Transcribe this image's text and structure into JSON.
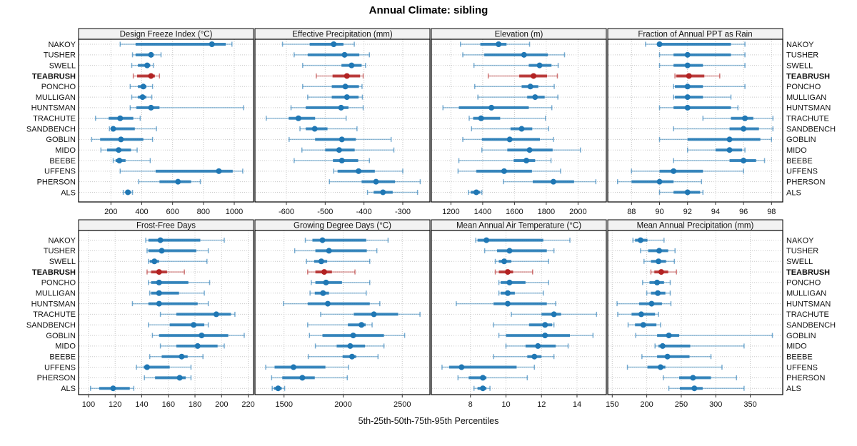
{
  "title": "Annual Climate: sibling",
  "footer": "5th-25th-50th-75th-95th Percentiles",
  "percentiles": [
    5,
    25,
    50,
    75,
    95
  ],
  "sites": [
    "NAKOY",
    "TUSHER",
    "SWELL",
    "TEABRUSH",
    "PONCHO",
    "MULLIGAN",
    "HUNTSMAN",
    "TRACHUTE",
    "SANDBENCH",
    "GOBLIN",
    "MIDO",
    "BEEBE",
    "UFFENS",
    "PHERSON",
    "ALS"
  ],
  "highlight_site": "TEABRUSH",
  "colors": {
    "series": "#1F77B4",
    "highlight": "#B22222",
    "grid": "#C9C9C9",
    "panel_border": "#000000",
    "header_bg": "#F2F2F2",
    "text": "#111111"
  },
  "chart_data": [
    {
      "type": "interval",
      "title": "Design Freeze Index (°C)",
      "xlim": [
        -10,
        1125
      ],
      "ticks": [
        200,
        400,
        600,
        800,
        1000
      ],
      "values": [
        [
          260,
          360,
          855,
          945,
          985
        ],
        [
          340,
          360,
          460,
          475,
          525
        ],
        [
          335,
          375,
          435,
          455,
          475
        ],
        [
          345,
          370,
          460,
          485,
          515
        ],
        [
          325,
          375,
          410,
          430,
          470
        ],
        [
          335,
          375,
          405,
          430,
          465
        ],
        [
          325,
          365,
          460,
          515,
          1060
        ],
        [
          100,
          185,
          260,
          345,
          390
        ],
        [
          190,
          200,
          215,
          355,
          495
        ],
        [
          75,
          130,
          265,
          410,
          470
        ],
        [
          135,
          175,
          250,
          330,
          370
        ],
        [
          215,
          230,
          255,
          295,
          455
        ],
        [
          260,
          490,
          900,
          990,
          1055
        ],
        [
          380,
          515,
          635,
          720,
          780
        ],
        [
          280,
          295,
          310,
          330,
          340
        ]
      ]
    },
    {
      "type": "interval",
      "title": "Effective Precipitation (mm)",
      "xlim": [
        -681,
        -230
      ],
      "ticks": [
        -600,
        -500,
        -400,
        -300
      ],
      "values": [
        [
          -610,
          -540,
          -478,
          -453,
          -425
        ],
        [
          -580,
          -545,
          -450,
          -412,
          -386
        ],
        [
          -558,
          -458,
          -432,
          -406,
          -396
        ],
        [
          -523,
          -481,
          -444,
          -410,
          -402
        ],
        [
          -558,
          -483,
          -448,
          -413,
          -405
        ],
        [
          -545,
          -483,
          -444,
          -414,
          -404
        ],
        [
          -588,
          -550,
          -459,
          -440,
          -402
        ],
        [
          -652,
          -594,
          -569,
          -526,
          -446
        ],
        [
          -565,
          -550,
          -527,
          -494,
          -418
        ],
        [
          -593,
          -526,
          -457,
          -421,
          -330
        ],
        [
          -560,
          -500,
          -464,
          -424,
          -323
        ],
        [
          -580,
          -480,
          -457,
          -415,
          -386
        ],
        [
          -478,
          -468,
          -414,
          -372,
          -300
        ],
        [
          -489,
          -406,
          -369,
          -320,
          -255
        ],
        [
          -391,
          -375,
          -351,
          -326,
          -262
        ]
      ]
    },
    {
      "type": "interval",
      "title": "Elevation (m)",
      "xlim": [
        1077,
        2178
      ],
      "ticks": [
        1200,
        1400,
        1600,
        1800,
        2000
      ],
      "values": [
        [
          1260,
          1385,
          1500,
          1550,
          1695
        ],
        [
          1275,
          1410,
          1660,
          1810,
          1915
        ],
        [
          1345,
          1690,
          1758,
          1833,
          1875
        ],
        [
          1435,
          1630,
          1720,
          1805,
          1870
        ],
        [
          1350,
          1645,
          1700,
          1750,
          1850
        ],
        [
          1370,
          1680,
          1730,
          1790,
          1873
        ],
        [
          1150,
          1250,
          1455,
          1690,
          1835
        ],
        [
          1315,
          1340,
          1390,
          1510,
          1795
        ],
        [
          1330,
          1575,
          1645,
          1712,
          1815
        ],
        [
          1275,
          1395,
          1570,
          1760,
          1845
        ],
        [
          1395,
          1555,
          1695,
          1840,
          2015
        ],
        [
          1250,
          1595,
          1675,
          1730,
          1830
        ],
        [
          1245,
          1360,
          1535,
          1710,
          1890
        ],
        [
          1530,
          1715,
          1845,
          1975,
          2112
        ],
        [
          1310,
          1325,
          1360,
          1385,
          1395
        ]
      ]
    },
    {
      "type": "interval",
      "title": "Fraction of Annual PPT as Rain",
      "xlim": [
        86.3,
        98.8
      ],
      "ticks": [
        88,
        90,
        92,
        94,
        96,
        98
      ],
      "values": [
        [
          89.0,
          89.9,
          90.0,
          95.1,
          96.1
        ],
        [
          90.0,
          91.0,
          92.0,
          95.1,
          96.1
        ],
        [
          90.0,
          91.0,
          92.0,
          93.1,
          96.1
        ],
        [
          91.1,
          91.2,
          92.1,
          93.2,
          94.3
        ],
        [
          91.0,
          91.1,
          92.0,
          93.1,
          96.1
        ],
        [
          91.0,
          91.1,
          92.0,
          93.1,
          95.1
        ],
        [
          90.0,
          91.0,
          92.0,
          95.1,
          95.6
        ],
        [
          93.1,
          95.1,
          96.1,
          96.7,
          98.1
        ],
        [
          91.0,
          95.0,
          96.0,
          97.1,
          98.1
        ],
        [
          90.0,
          92.0,
          95.0,
          97.2,
          98.0
        ],
        [
          92.0,
          94.0,
          95.0,
          95.9,
          96.1
        ],
        [
          91.0,
          95.0,
          96.0,
          96.9,
          97.5
        ],
        [
          88.0,
          90.0,
          91.0,
          93.1,
          96.0
        ],
        [
          87.0,
          88.0,
          90.0,
          91.0,
          93.0
        ],
        [
          90.0,
          91.0,
          92.0,
          92.9,
          93.1
        ]
      ]
    },
    {
      "type": "interval",
      "title": "Frost-Free Days",
      "xlim": [
        92.5,
        224
      ],
      "ticks": [
        100,
        120,
        140,
        160,
        180,
        200,
        220
      ],
      "values": [
        [
          143,
          145,
          154,
          184,
          202
        ],
        [
          144,
          145,
          155,
          181,
          190
        ],
        [
          145,
          146,
          149.5,
          153,
          189
        ],
        [
          144,
          147,
          153,
          159,
          172
        ],
        [
          145,
          147,
          153,
          175,
          191
        ],
        [
          146,
          147,
          153,
          168,
          187
        ],
        [
          133,
          145,
          153,
          182,
          190
        ],
        [
          154,
          166,
          196,
          207,
          210
        ],
        [
          145,
          161,
          179,
          187,
          190
        ],
        [
          148,
          153,
          185,
          205,
          217
        ],
        [
          154,
          166,
          182,
          197,
          202
        ],
        [
          146,
          155,
          170,
          174.5,
          186
        ],
        [
          136,
          141.5,
          144,
          161,
          177
        ],
        [
          142,
          150,
          168.5,
          173,
          177
        ],
        [
          101.5,
          108,
          118.5,
          131,
          134
        ]
      ]
    },
    {
      "type": "interval",
      "title": "Growing Degree Days (°C)",
      "xlim": [
        1254,
        2734
      ],
      "ticks": [
        1500,
        2000,
        2500
      ],
      "values": [
        [
          1680,
          1740,
          1825,
          2195,
          2380
        ],
        [
          1590,
          1765,
          1880,
          2200,
          2285
        ],
        [
          1690,
          1755,
          1815,
          1865,
          2225
        ],
        [
          1700,
          1765,
          1840,
          1905,
          2100
        ],
        [
          1730,
          1765,
          1855,
          1990,
          2225
        ],
        [
          1720,
          1760,
          1830,
          1880,
          2195
        ],
        [
          1495,
          1700,
          1870,
          2225,
          2310
        ],
        [
          1810,
          2090,
          2260,
          2465,
          2650
        ],
        [
          1700,
          2040,
          2155,
          2190,
          2245
        ],
        [
          1715,
          1825,
          2085,
          2345,
          2520
        ],
        [
          1765,
          1945,
          2060,
          2185,
          2345
        ],
        [
          1705,
          1995,
          2075,
          2110,
          2295
        ],
        [
          1345,
          1420,
          1580,
          1850,
          2045
        ],
        [
          1395,
          1485,
          1655,
          1760,
          2035
        ],
        [
          1400,
          1415,
          1450,
          1480,
          1505
        ]
      ]
    },
    {
      "type": "interval",
      "title": "Mean Annual Air Temperature (°C)",
      "xlim": [
        5.8,
        15.65
      ],
      "ticks": [
        8,
        10,
        12,
        14
      ],
      "values": [
        [
          8.3,
          8.4,
          8.9,
          12.1,
          13.6
        ],
        [
          8.8,
          9.5,
          10.2,
          12.3,
          12.7
        ],
        [
          9.4,
          9.6,
          9.9,
          10.3,
          12.4
        ],
        [
          9.4,
          9.6,
          10.1,
          10.4,
          11.5
        ],
        [
          9.6,
          9.7,
          10.2,
          11.1,
          12.4
        ],
        [
          9.6,
          9.7,
          10.1,
          10.5,
          12.1
        ],
        [
          7.2,
          9.3,
          10.1,
          12.3,
          12.8
        ],
        [
          10.3,
          12.0,
          12.7,
          13.1,
          15.1
        ],
        [
          9.3,
          11.3,
          12.2,
          12.6,
          12.7
        ],
        [
          9.6,
          10.0,
          12.2,
          13.6,
          14.9
        ],
        [
          10.0,
          11.1,
          11.8,
          12.8,
          13.5
        ],
        [
          9.3,
          11.2,
          11.6,
          12.0,
          12.7
        ],
        [
          6.4,
          6.8,
          7.5,
          10.6,
          11.6
        ],
        [
          7.3,
          7.9,
          8.7,
          8.9,
          11.2
        ],
        [
          8.2,
          8.4,
          8.7,
          8.9,
          9.1
        ]
      ]
    },
    {
      "type": "interval",
      "title": "Mean Annual Precipitation (mm)",
      "xlim": [
        143.5,
        397
      ],
      "ticks": [
        150,
        200,
        250,
        300,
        350
      ],
      "values": [
        [
          180,
          183,
          191,
          201,
          225
        ],
        [
          191,
          202,
          218,
          231,
          241
        ],
        [
          196,
          206,
          217,
          228,
          240
        ],
        [
          206,
          211,
          221,
          231,
          243
        ],
        [
          194,
          204,
          215,
          225,
          234
        ],
        [
          200,
          206,
          216,
          227,
          234
        ],
        [
          157,
          189,
          207,
          222,
          235
        ],
        [
          158,
          178,
          192,
          212,
          217
        ],
        [
          173,
          183,
          195,
          214,
          220
        ],
        [
          184,
          215,
          232,
          247,
          382
        ],
        [
          212,
          217,
          223,
          263,
          341
        ],
        [
          193,
          215,
          230,
          262,
          293
        ],
        [
          172,
          201,
          220,
          227,
          309
        ],
        [
          224,
          247,
          267,
          293,
          330
        ],
        [
          232,
          248,
          269,
          281,
          341
        ]
      ]
    }
  ]
}
